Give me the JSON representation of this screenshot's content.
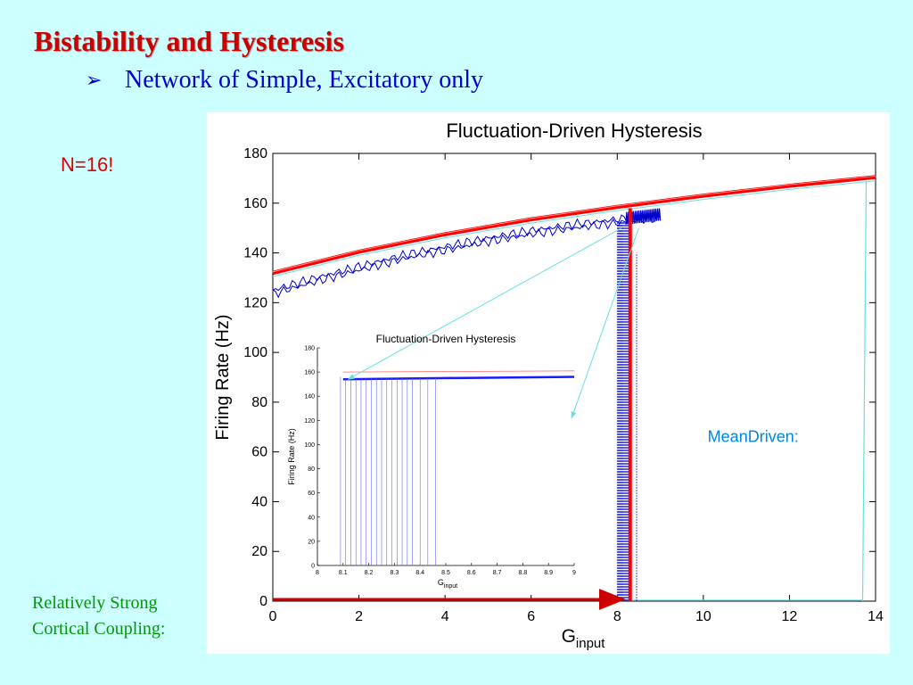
{
  "slide": {
    "title": "Bistability  and Hysteresis",
    "bullet_icon": "arrow-bullet-icon",
    "bullet_text": "Network of Simple, Excitatory only",
    "network_size_label": "N=16!",
    "coupling_label_line1": "Relatively Strong",
    "coupling_label_line2": "Cortical Coupling:",
    "colors": {
      "background": "#ccffff",
      "title": "#cc0000",
      "bullet": "#0000cc",
      "n_label": "#e00000",
      "coupling": "#009900"
    }
  },
  "chart_data": [
    {
      "type": "line",
      "title": "Fluctuation-Driven Hysteresis",
      "xlabel": "G",
      "xlabel_subscript": "input",
      "ylabel": "Firing Rate (Hz)",
      "xlim": [
        0,
        14
      ],
      "ylim": [
        0,
        180
      ],
      "x_ticks": [
        0,
        2,
        4,
        6,
        8,
        10,
        12,
        14
      ],
      "y_ticks": [
        0,
        20,
        40,
        60,
        80,
        100,
        120,
        140,
        160,
        180
      ],
      "grid": false,
      "annotation": "MeanDriven:",
      "colors": {
        "mean_driven": "#ff0000",
        "fluctuation": "#0000cc",
        "cyan": "#66e0e0",
        "arrow": "#cc0000"
      },
      "series": [
        {
          "name": "",
          "role": "mean-driven-upper",
          "x": [
            0,
            2,
            4,
            6,
            8,
            10,
            12,
            14
          ],
          "y": [
            132,
            140.5,
            147.5,
            153.5,
            158.5,
            163,
            167,
            170.5
          ]
        },
        {
          "name": "",
          "role": "fluctuation-upper",
          "x": [
            0,
            1,
            2,
            3,
            4,
            5,
            6,
            7,
            8,
            8.5,
            9
          ],
          "y": [
            125,
            130,
            134.5,
            139,
            142.5,
            146,
            149,
            151.5,
            153.5,
            154.5,
            155.5
          ]
        },
        {
          "name": "",
          "role": "jump-up",
          "x": [
            8.3,
            8.3
          ],
          "y": [
            0,
            158
          ]
        },
        {
          "name": "",
          "role": "cyan-jump",
          "x": [
            13.7,
            13.7
          ],
          "y": [
            0,
            169
          ]
        },
        {
          "name": "",
          "role": "lower-branch",
          "x": [
            0,
            8.3
          ],
          "y": [
            0,
            0
          ]
        }
      ]
    },
    {
      "type": "line",
      "title": "Fluctuation-Driven Hysteresis",
      "xlabel": "G",
      "xlabel_subscript": "input",
      "ylabel": "Firing Rate (Hz)",
      "xlim": [
        8,
        9
      ],
      "ylim": [
        0,
        180
      ],
      "x_ticks": [
        8,
        8.1,
        8.2,
        8.3,
        8.4,
        8.5,
        8.6,
        8.7,
        8.8,
        8.9,
        9
      ],
      "x_tick_labels": [
        "8",
        "8.1",
        "8.2",
        "8.3",
        "8.4",
        "8.5",
        "8.6",
        "8.7",
        "8.8",
        "8.9",
        "9"
      ],
      "y_ticks": [
        0,
        20,
        40,
        60,
        80,
        100,
        120,
        140,
        160,
        180
      ],
      "grid": false,
      "transition_x": [
        8.09,
        8.11,
        8.13,
        8.15,
        8.17,
        8.19,
        8.21,
        8.23,
        8.25,
        8.27,
        8.29,
        8.31,
        8.33,
        8.35,
        8.37,
        8.4,
        8.43,
        8.46
      ],
      "series": [
        {
          "name": "",
          "role": "upper-branch",
          "x": [
            8.1,
            8.5,
            9
          ],
          "y": [
            154,
            155,
            156
          ]
        },
        {
          "name": "",
          "role": "red-reference",
          "x": [
            8.1,
            9
          ],
          "y": [
            160,
            161
          ]
        }
      ]
    }
  ]
}
